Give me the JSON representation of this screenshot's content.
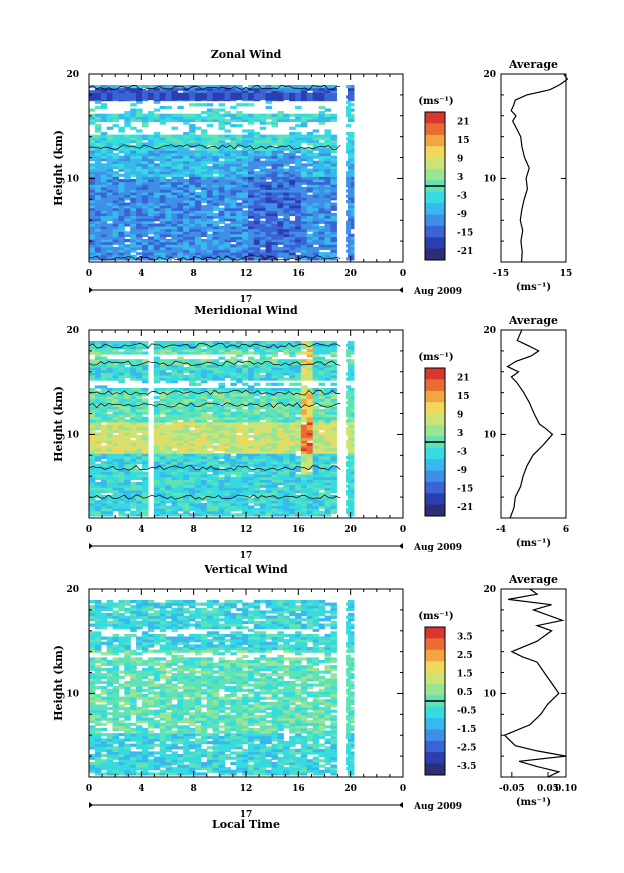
{
  "colorscale": [
    "#2b2f73",
    "#2b3fb0",
    "#3b63d6",
    "#3f8fe6",
    "#38b9ee",
    "#36dbe0",
    "#5fe3b5",
    "#9be592",
    "#cde374",
    "#f0d95a",
    "#f3a544",
    "#ea6b33",
    "#d9362d"
  ],
  "chart_data": [
    {
      "type": "heatmap",
      "title": "Zonal Wind",
      "ylabel": "Height (km)",
      "ylim": [
        2,
        20
      ],
      "yticks": [
        "20",
        "10"
      ],
      "xticks": [
        "0",
        "4",
        "8",
        "12",
        "16",
        "20",
        "0"
      ],
      "xlim": [
        0,
        24
      ],
      "date_labels": [
        "17",
        "Aug 2009"
      ],
      "unit": "(ms⁻¹)",
      "colorbar_ticks": [
        "21",
        "15",
        "9",
        "3",
        "-3",
        "-9",
        "-15",
        "-21"
      ],
      "colorbar_range": [
        -24,
        24
      ],
      "average": {
        "title": "Average",
        "xticks": [
          "-15",
          "15"
        ],
        "xlim": [
          -15,
          15
        ],
        "unit": "(ms⁻¹)",
        "height": [
          2.0,
          3.0,
          4.0,
          5.0,
          6.0,
          7.0,
          8.0,
          9.0,
          10.0,
          11.0,
          12.0,
          13.0,
          14.0,
          15.0,
          15.5,
          16.0,
          16.5,
          17.0,
          17.5,
          18.0,
          18.5,
          19.0,
          19.5,
          20.0
        ],
        "value": [
          -5.5,
          -5.2,
          -5.8,
          -5.0,
          -6.1,
          -5.4,
          -4.3,
          -2.8,
          -3.4,
          -2.0,
          -4.1,
          -5.3,
          -5.9,
          -8.4,
          -9.6,
          -8.1,
          -10.3,
          -9.2,
          -8.4,
          -3.1,
          7.6,
          12.4,
          15.6,
          14.0
        ]
      }
    },
    {
      "type": "heatmap",
      "title": "Meridional Wind",
      "ylabel": "Height (km)",
      "ylim": [
        2,
        20
      ],
      "yticks": [
        "20",
        "10"
      ],
      "xticks": [
        "0",
        "4",
        "8",
        "12",
        "16",
        "20",
        "0"
      ],
      "xlim": [
        0,
        24
      ],
      "date_labels": [
        "17",
        "Aug 2009"
      ],
      "unit": "(ms⁻¹)",
      "colorbar_ticks": [
        "21",
        "15",
        "9",
        "3",
        "-3",
        "-9",
        "-15",
        "-21"
      ],
      "colorbar_range": [
        -24,
        24
      ],
      "average": {
        "title": "Average",
        "xticks": [
          "-4",
          "6"
        ],
        "xlim": [
          -4,
          6
        ],
        "unit": "(ms⁻¹)",
        "height": [
          2.0,
          3.0,
          4.0,
          5.0,
          6.0,
          7.0,
          8.0,
          9.0,
          9.5,
          10.0,
          10.5,
          11.0,
          12.0,
          13.0,
          14.0,
          15.0,
          15.5,
          16.0,
          16.5,
          17.0,
          17.5,
          18.0,
          18.5,
          19.0,
          20.0
        ],
        "value": [
          -2.6,
          -2.0,
          -1.8,
          -1.0,
          -0.6,
          0.0,
          0.9,
          2.5,
          3.2,
          3.9,
          3.0,
          1.9,
          1.1,
          0.4,
          -0.5,
          -1.6,
          -2.4,
          -1.3,
          -3.0,
          -1.7,
          0.6,
          1.8,
          0.2,
          -1.5,
          -0.8
        ]
      }
    },
    {
      "type": "heatmap",
      "title": "Vertical Wind",
      "ylabel": "Height (km)",
      "ylim": [
        2,
        20
      ],
      "yticks": [
        "20",
        "10"
      ],
      "xticks": [
        "0",
        "4",
        "8",
        "12",
        "16",
        "20",
        "0"
      ],
      "xlim": [
        0,
        24
      ],
      "date_labels": [
        "17",
        "Aug 2009"
      ],
      "xlabel": "Local Time",
      "unit": "(ms⁻¹)",
      "colorbar_ticks": [
        "3.5",
        "2.5",
        "1.5",
        "0.5",
        "-0.5",
        "-1.5",
        "-2.5",
        "-3.5"
      ],
      "colorbar_range": [
        -4,
        4
      ],
      "average": {
        "title": "Average",
        "xticks": [
          "-0.05",
          "0.05",
          "0.10"
        ],
        "xlim": [
          -0.08,
          0.1
        ],
        "unit": "(ms⁻¹)",
        "height": [
          2.0,
          2.5,
          3.0,
          3.5,
          4.0,
          4.5,
          5.0,
          6.0,
          7.0,
          8.0,
          9.0,
          10.0,
          11.0,
          12.0,
          13.0,
          13.5,
          14.0,
          15.0,
          16.0,
          16.5,
          17.0,
          18.0,
          18.5,
          19.0,
          19.5,
          20.0
        ],
        "value": [
          0.05,
          0.08,
          0.02,
          -0.03,
          0.1,
          0.02,
          -0.04,
          -0.07,
          0.0,
          0.03,
          0.05,
          0.08,
          0.06,
          0.04,
          0.02,
          -0.02,
          -0.05,
          0.02,
          0.06,
          0.02,
          0.09,
          0.01,
          0.06,
          -0.06,
          0.02,
          0.0
        ]
      }
    }
  ]
}
